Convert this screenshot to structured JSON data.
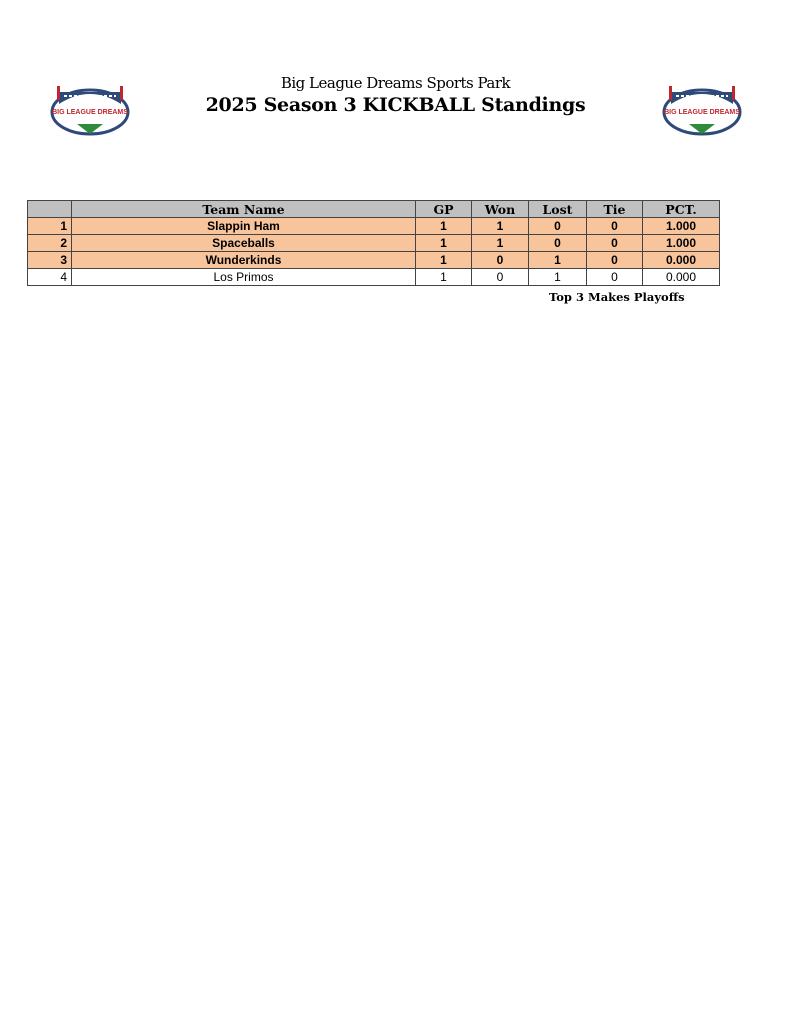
{
  "header": {
    "subtitle": "Big League Dreams Sports Park",
    "title": "2025 Season 3 KICKBALL Standings",
    "logo_text": "BIG LEAGUE DREAMS"
  },
  "table": {
    "columns": [
      "",
      "Team Name",
      "GP",
      "Won",
      "Lost",
      "Tie",
      "PCT."
    ],
    "rows": [
      {
        "rank": "1",
        "team": "Slappin Ham",
        "gp": "1",
        "won": "1",
        "lost": "0",
        "tie": "0",
        "pct": "1.000"
      },
      {
        "rank": "2",
        "team": "Spaceballs",
        "gp": "1",
        "won": "1",
        "lost": "0",
        "tie": "0",
        "pct": "1.000"
      },
      {
        "rank": "3",
        "team": "Wunderkinds",
        "gp": "1",
        "won": "0",
        "lost": "1",
        "tie": "0",
        "pct": "0.000"
      },
      {
        "rank": "4",
        "team": "Los Primos",
        "gp": "1",
        "won": "0",
        "lost": "1",
        "tie": "0",
        "pct": "0.000"
      }
    ],
    "highlight_color": "#f8c49c",
    "header_color": "#c0c0c0"
  },
  "footer_note": "Top 3 Makes Playoffs"
}
